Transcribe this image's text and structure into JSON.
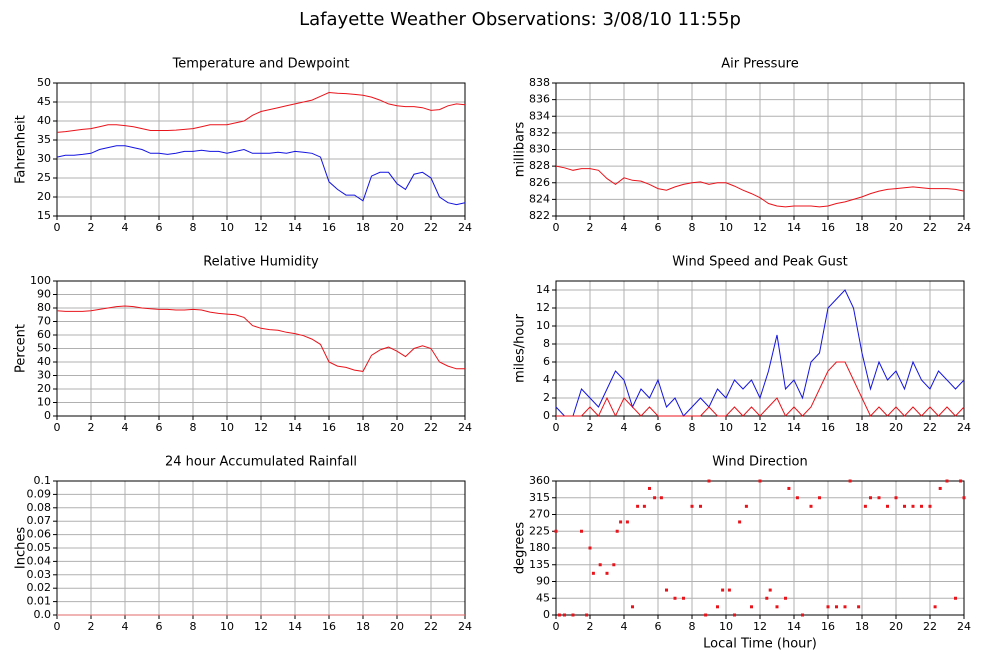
{
  "title": "Lafayette Weather Observations: 3/08/10 11:55p",
  "chart_data": [
    {
      "type": "line",
      "title": "Temperature and Dewpoint",
      "ylabel": "Fahrenheit",
      "x": [
        0,
        0.5,
        1,
        1.5,
        2,
        2.5,
        3,
        3.5,
        4,
        4.5,
        5,
        5.5,
        6,
        6.5,
        7,
        7.5,
        8,
        8.5,
        9,
        9.5,
        10,
        10.5,
        11,
        11.5,
        12,
        12.5,
        13,
        13.5,
        14,
        14.5,
        15,
        15.5,
        16,
        16.5,
        17,
        17.5,
        18,
        18.5,
        19,
        19.5,
        20,
        20.5,
        21,
        21.5,
        22,
        22.5,
        23,
        23.5,
        24
      ],
      "series": [
        {
          "color": "#e8141b",
          "values": [
            37,
            37.2,
            37.5,
            37.8,
            38,
            38.5,
            39,
            39,
            38.8,
            38.5,
            38,
            37.5,
            37.5,
            37.5,
            37.6,
            37.8,
            38,
            38.5,
            39,
            39,
            39,
            39.5,
            40,
            41.5,
            42.5,
            43,
            43.5,
            44,
            44.5,
            45,
            45.5,
            46.5,
            47.5,
            47.3,
            47.2,
            47,
            46.8,
            46.3,
            45.5,
            44.5,
            44,
            43.8,
            43.8,
            43.5,
            42.8,
            43,
            44,
            44.5,
            44.3
          ]
        },
        {
          "color": "#1414e0",
          "values": [
            30.5,
            31,
            31,
            31.2,
            31.5,
            32.5,
            33,
            33.5,
            33.5,
            33,
            32.5,
            31.5,
            31.5,
            31.2,
            31.5,
            32,
            32,
            32.3,
            32,
            32,
            31.5,
            32,
            32.5,
            31.5,
            31.5,
            31.5,
            31.8,
            31.5,
            32,
            31.8,
            31.5,
            30.5,
            24,
            22,
            20.5,
            20.5,
            19,
            25.5,
            26.5,
            26.5,
            23.5,
            22,
            26,
            26.5,
            25,
            20,
            18.5,
            18,
            18.5
          ]
        }
      ],
      "xlim": [
        0,
        24
      ],
      "xticks": [
        0,
        2,
        4,
        6,
        8,
        10,
        12,
        14,
        16,
        18,
        20,
        22,
        24
      ],
      "ylim": [
        15,
        50
      ],
      "yticks": [
        15,
        20,
        25,
        30,
        35,
        40,
        45,
        50
      ],
      "grid": true
    },
    {
      "type": "line",
      "title": "Air Pressure",
      "ylabel": "millibars",
      "x": [
        0,
        0.5,
        1,
        1.5,
        2,
        2.5,
        3,
        3.5,
        4,
        4.5,
        5,
        5.5,
        6,
        6.5,
        7,
        7.5,
        8,
        8.5,
        9,
        9.5,
        10,
        10.5,
        11,
        11.5,
        12,
        12.5,
        13,
        13.5,
        14,
        14.5,
        15,
        15.5,
        16,
        16.5,
        17,
        17.5,
        18,
        18.5,
        19,
        19.5,
        20,
        20.5,
        21,
        21.5,
        22,
        22.5,
        23,
        23.5,
        24
      ],
      "series": [
        {
          "color": "#e8141b",
          "values": [
            828,
            827.8,
            827.5,
            827.7,
            827.7,
            827.5,
            826.5,
            825.8,
            826.6,
            826.3,
            826.2,
            825.8,
            825.3,
            825.1,
            825.5,
            825.8,
            826,
            826.1,
            825.8,
            826,
            826,
            825.6,
            825.1,
            824.7,
            824.2,
            823.5,
            823.2,
            823.1,
            823.2,
            823.2,
            823.2,
            823.1,
            823.2,
            823.5,
            823.7,
            824,
            824.3,
            824.7,
            825,
            825.2,
            825.3,
            825.4,
            825.5,
            825.4,
            825.3,
            825.3,
            825.3,
            825.2,
            825
          ]
        }
      ],
      "xlim": [
        0,
        24
      ],
      "xticks": [
        0,
        2,
        4,
        6,
        8,
        10,
        12,
        14,
        16,
        18,
        20,
        22,
        24
      ],
      "ylim": [
        822,
        838
      ],
      "yticks": [
        822,
        824,
        826,
        828,
        830,
        832,
        834,
        836,
        838
      ],
      "grid": true
    },
    {
      "type": "line",
      "title": "Relative Humidity",
      "ylabel": "Percent",
      "x": [
        0,
        0.5,
        1,
        1.5,
        2,
        2.5,
        3,
        3.5,
        4,
        4.5,
        5,
        5.5,
        6,
        6.5,
        7,
        7.5,
        8,
        8.5,
        9,
        9.5,
        10,
        10.5,
        11,
        11.5,
        12,
        12.5,
        13,
        13.5,
        14,
        14.5,
        15,
        15.5,
        16,
        16.5,
        17,
        17.5,
        18,
        18.5,
        19,
        19.5,
        20,
        20.5,
        21,
        21.5,
        22,
        22.5,
        23,
        23.5,
        24
      ],
      "series": [
        {
          "color": "#e8141b",
          "values": [
            78,
            77.5,
            77.5,
            77.5,
            78,
            79,
            80,
            81,
            81.5,
            81,
            80,
            79.5,
            79,
            79,
            78.5,
            78.5,
            79,
            78.5,
            77,
            76,
            75.5,
            75,
            73,
            67,
            65,
            64,
            63.5,
            62,
            61,
            59.5,
            57,
            53,
            40,
            37,
            36,
            34,
            33,
            45,
            49,
            51,
            48,
            44,
            50,
            52,
            50,
            40,
            37,
            35,
            35
          ]
        }
      ],
      "xlim": [
        0,
        24
      ],
      "xticks": [
        0,
        2,
        4,
        6,
        8,
        10,
        12,
        14,
        16,
        18,
        20,
        22,
        24
      ],
      "ylim": [
        0,
        100
      ],
      "yticks": [
        0,
        10,
        20,
        30,
        40,
        50,
        60,
        70,
        80,
        90,
        100
      ],
      "grid": true
    },
    {
      "type": "line",
      "title": "Wind Speed and Peak Gust",
      "ylabel": "miles/hour",
      "x": [
        0,
        0.5,
        1,
        1.5,
        2,
        2.5,
        3,
        3.5,
        4,
        4.5,
        5,
        5.5,
        6,
        6.5,
        7,
        7.5,
        8,
        8.5,
        9,
        9.5,
        10,
        10.5,
        11,
        11.5,
        12,
        12.5,
        13,
        13.5,
        14,
        14.5,
        15,
        15.5,
        16,
        16.5,
        17,
        17.5,
        18,
        18.5,
        19,
        19.5,
        20,
        20.5,
        21,
        21.5,
        22,
        22.5,
        23,
        23.5,
        24
      ],
      "series": [
        {
          "color": "#1414e0",
          "values": [
            1,
            0,
            0,
            3,
            2,
            1,
            3,
            5,
            4,
            1,
            3,
            2,
            4,
            1,
            2,
            0,
            1,
            2,
            1,
            3,
            2,
            4,
            3,
            4,
            2,
            5,
            9,
            3,
            4,
            2,
            6,
            7,
            12,
            13,
            14,
            12,
            7,
            3,
            6,
            4,
            5,
            3,
            6,
            4,
            3,
            5,
            4,
            3,
            4
          ]
        },
        {
          "color": "#e8141b",
          "values": [
            0,
            0,
            0,
            0,
            1,
            0,
            2,
            0,
            2,
            1,
            0,
            1,
            0,
            0,
            0,
            0,
            0,
            0,
            1,
            0,
            0,
            1,
            0,
            1,
            0,
            1,
            2,
            0,
            1,
            0,
            1,
            3,
            5,
            6,
            6,
            4,
            2,
            0,
            1,
            0,
            1,
            0,
            1,
            0,
            1,
            0,
            1,
            0,
            1
          ]
        }
      ],
      "xlim": [
        0,
        24
      ],
      "xticks": [
        0,
        2,
        4,
        6,
        8,
        10,
        12,
        14,
        16,
        18,
        20,
        22,
        24
      ],
      "ylim": [
        0,
        15
      ],
      "yticks": [
        0,
        2,
        4,
        6,
        8,
        10,
        12,
        14
      ],
      "grid": true
    },
    {
      "type": "line",
      "title": "24 hour Accumulated Rainfall",
      "ylabel": "Inches",
      "x": [
        0,
        24
      ],
      "series": [
        {
          "color": "#e06a6a",
          "values": [
            0,
            0
          ]
        }
      ],
      "xlim": [
        0,
        24
      ],
      "xticks": [
        0,
        2,
        4,
        6,
        8,
        10,
        12,
        14,
        16,
        18,
        20,
        22,
        24
      ],
      "ylim": [
        0,
        0.1
      ],
      "yticks": [
        {
          "value": 0,
          "label": "0.0"
        },
        0.01,
        0.02,
        0.03,
        0.04,
        0.05,
        0.06,
        0.07,
        0.08,
        0.09,
        0.1
      ],
      "grid": true
    },
    {
      "type": "scatter",
      "title": "Wind Direction",
      "ylabel": "degrees",
      "xlabel": "Local Time (hour)",
      "x": [
        0,
        0.2,
        0.5,
        1,
        1.5,
        1.8,
        2,
        2.2,
        2.6,
        3,
        3.4,
        3.6,
        3.8,
        4.2,
        4.5,
        4.8,
        5.2,
        5.5,
        5.8,
        6.2,
        6.5,
        7,
        7.5,
        8,
        8.5,
        8.8,
        9,
        9.5,
        9.8,
        10.2,
        10.5,
        10.8,
        11.2,
        11.5,
        12,
        12.4,
        12.6,
        13,
        13.5,
        13.7,
        14.2,
        14.5,
        15,
        15.5,
        16,
        16.5,
        17,
        17.3,
        17.8,
        18.2,
        18.5,
        19,
        19.5,
        20,
        20.5,
        21,
        21.5,
        22,
        22.3,
        22.6,
        23,
        23.5,
        23.8,
        24
      ],
      "series": [
        {
          "color": "#e8141b",
          "values": [
            225,
            0,
            0,
            0,
            225,
            0,
            180,
            112,
            135,
            112,
            135,
            225,
            250,
            250,
            22,
            292,
            292,
            340,
            315,
            315,
            67,
            45,
            45,
            292,
            292,
            0,
            360,
            22,
            67,
            67,
            0,
            250,
            292,
            22,
            360,
            45,
            67,
            22,
            45,
            340,
            315,
            0,
            292,
            315,
            22,
            22,
            22,
            360,
            22,
            292,
            315,
            315,
            292,
            315,
            292,
            292,
            292,
            292,
            22,
            340,
            360,
            45,
            360,
            315
          ]
        }
      ],
      "xlim": [
        0,
        24
      ],
      "xticks": [
        0,
        2,
        4,
        6,
        8,
        10,
        12,
        14,
        16,
        18,
        20,
        22,
        24
      ],
      "ylim": [
        0,
        360
      ],
      "yticks": [
        0,
        45,
        90,
        135,
        180,
        225,
        270,
        315,
        360
      ],
      "grid": true
    }
  ]
}
